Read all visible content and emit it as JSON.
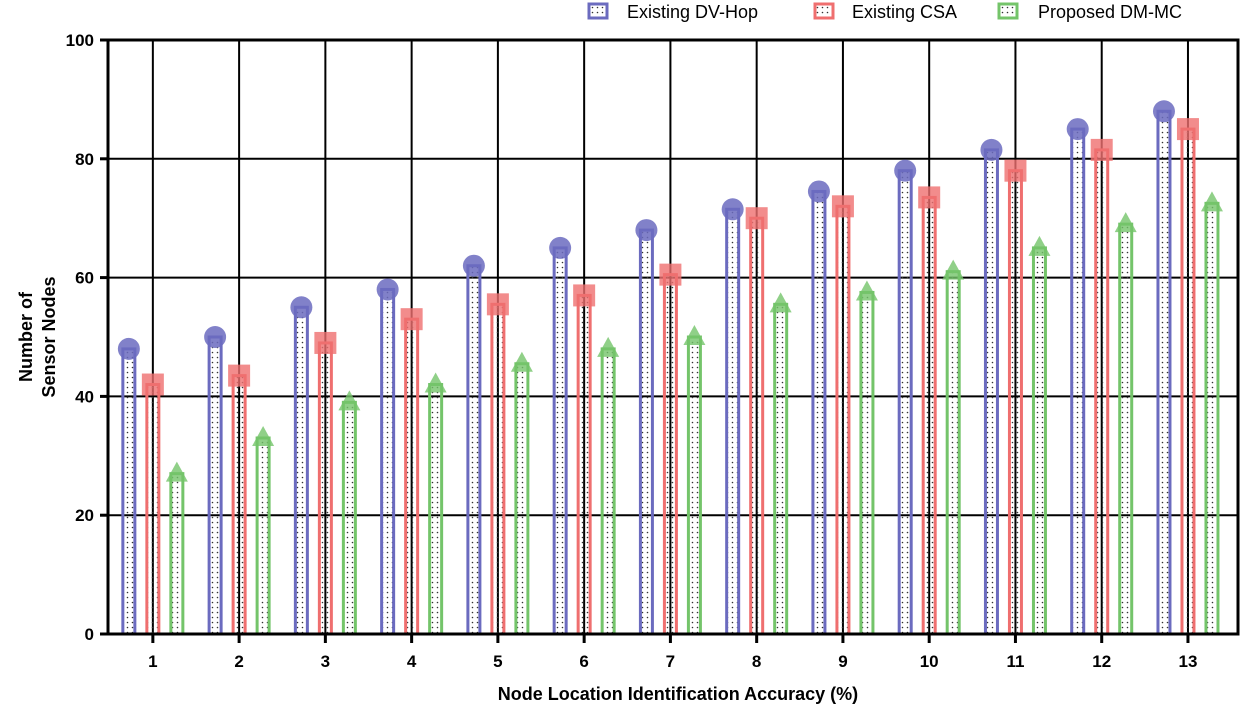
{
  "chart_data": {
    "type": "bar",
    "xlabel": "Node Location Identification Accuracy (%)",
    "ylabel": [
      "Number of",
      "Sensor Nodes"
    ],
    "ylim": [
      0,
      100
    ],
    "yticks": [
      0,
      20,
      40,
      60,
      80,
      100
    ],
    "categories": [
      "1",
      "2",
      "3",
      "4",
      "5",
      "6",
      "7",
      "8",
      "9",
      "10",
      "11",
      "12",
      "13"
    ],
    "grid": true,
    "legend_position": "top-right",
    "series": [
      {
        "name": "Existing DV-Hop",
        "marker": "circle",
        "color": "#6b6bbf",
        "values": [
          48,
          50,
          55,
          58,
          62,
          65,
          68,
          71.5,
          74.5,
          78,
          81.5,
          85,
          88
        ]
      },
      {
        "name": "Existing CSA",
        "marker": "square",
        "color": "#ef6f6f",
        "values": [
          42,
          43.5,
          49,
          53,
          55.5,
          57,
          60.5,
          70,
          72,
          73.5,
          78,
          81.5,
          85
        ]
      },
      {
        "name": "Proposed DM-MC",
        "marker": "triangle",
        "color": "#74c46a",
        "values": [
          27,
          33,
          39,
          42,
          45.5,
          48,
          50,
          55.5,
          57.5,
          61,
          65,
          69,
          72.5
        ]
      }
    ]
  }
}
